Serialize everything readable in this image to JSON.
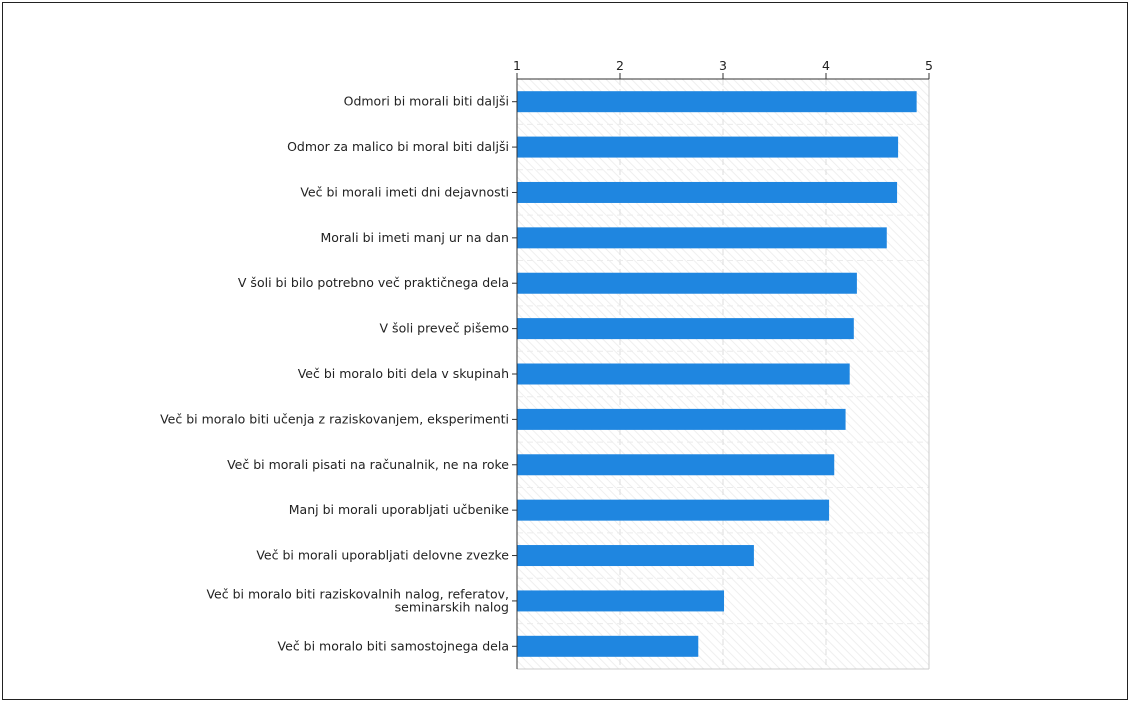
{
  "chart_data": {
    "type": "bar",
    "orientation": "horizontal",
    "title": "",
    "xlabel": "",
    "ylabel": "",
    "xlim": [
      1,
      5
    ],
    "xticks": [
      "1",
      "2",
      "3",
      "4",
      "5"
    ],
    "grid": true,
    "bar_color": "#1f86e0",
    "categories": [
      [
        "Odmori bi morali biti daljši"
      ],
      [
        "Odmor za malico bi moral biti daljši"
      ],
      [
        "Več bi morali imeti dni dejavnosti"
      ],
      [
        "Morali bi imeti manj ur na dan"
      ],
      [
        "V šoli bi bilo potrebno več praktičnega dela"
      ],
      [
        "V šoli preveč pišemo"
      ],
      [
        "Več bi moralo biti dela v skupinah"
      ],
      [
        "Več bi moralo biti učenja z raziskovanjem, eksperimenti"
      ],
      [
        "Več bi morali pisati na računalnik, ne na roke"
      ],
      [
        "Manj bi morali uporabljati učbenike"
      ],
      [
        "Več bi morali uporabljati delovne zvezke"
      ],
      [
        "Več bi moralo biti raziskovalnih nalog, referatov,",
        "seminarskih nalog"
      ],
      [
        "Več bi moralo biti samostojnega dela"
      ]
    ],
    "values": [
      4.88,
      4.7,
      4.69,
      4.59,
      4.3,
      4.27,
      4.23,
      4.19,
      4.08,
      4.03,
      3.3,
      3.01,
      2.76
    ]
  }
}
